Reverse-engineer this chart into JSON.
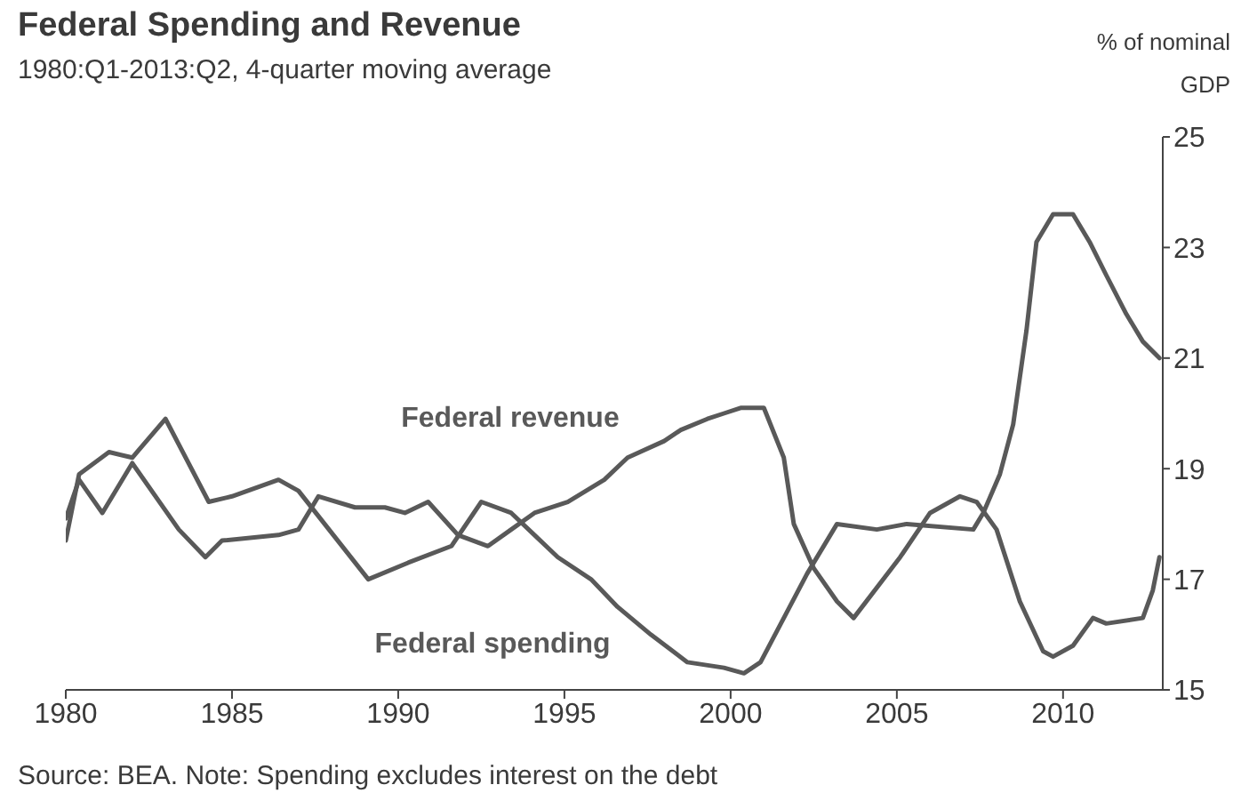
{
  "chart_data": {
    "type": "line",
    "title": "Federal Spending and Revenue",
    "subtitle": "1980:Q1-2013:Q2, 4-quarter moving average",
    "ylabel": "% of nominal GDP",
    "annotations": [
      "Source: BEA. Note: Spending excludes interest on the debt"
    ],
    "xlim": [
      1980,
      2013
    ],
    "xticks": [
      1980,
      1985,
      1990,
      1995,
      2000,
      2005,
      2010
    ],
    "ylim": [
      15,
      25
    ],
    "yticks": [
      15,
      17,
      19,
      21,
      23,
      25
    ],
    "series": [
      {
        "name": "Federal spending",
        "color": "#595959",
        "x": [
          1980,
          1980.4,
          1981.3,
          1982,
          1983,
          1984.3,
          1985,
          1986.4,
          1987,
          1989.1,
          1990.3,
          1991.6,
          1992.5,
          1993.4,
          1994.1,
          1994.8,
          1995.8,
          1996.6,
          1997.6,
          1998.7,
          1999.8,
          2000.4,
          2000.9,
          2001.6,
          2002.3,
          2003.2,
          2004.4,
          2005.3,
          2007.3,
          2007.6,
          2008.1,
          2008.5,
          2008.9,
          2009.2,
          2009.7,
          2010.3,
          2010.8,
          2011.3,
          2011.9,
          2012.4,
          2012.9
        ],
        "values": [
          17.7,
          18.9,
          19.3,
          19.2,
          19.9,
          18.4,
          18.5,
          18.8,
          18.6,
          17.0,
          17.3,
          17.6,
          18.4,
          18.2,
          17.8,
          17.4,
          17.0,
          16.5,
          16.0,
          15.5,
          15.4,
          15.3,
          15.5,
          16.3,
          17.1,
          18.0,
          17.9,
          18.0,
          17.9,
          18.2,
          18.9,
          19.8,
          21.5,
          23.1,
          23.6,
          23.6,
          23.1,
          22.5,
          21.8,
          21.3,
          21.0
        ]
      },
      {
        "name": "Federal revenue",
        "color": "#595959",
        "x": [
          1980,
          1980.4,
          1981.1,
          1982,
          1983.4,
          1984.2,
          1984.7,
          1986.4,
          1987,
          1987.6,
          1988.7,
          1989.6,
          1990.2,
          1990.9,
          1991.8,
          1992.7,
          1993.4,
          1994.1,
          1995.1,
          1996.2,
          1996.9,
          1998,
          1998.5,
          1999.3,
          1999.8,
          2000.3,
          2001,
          2001.6,
          2001.9,
          2002.5,
          2003.2,
          2003.7,
          2005.1,
          2006,
          2006.9,
          2007.4,
          2008,
          2008.7,
          2009.4,
          2009.7,
          2010.3,
          2010.9,
          2011.3,
          2012.4,
          2012.7,
          2012.9
        ],
        "values": [
          18.1,
          18.8,
          18.2,
          19.1,
          17.9,
          17.4,
          17.7,
          17.8,
          17.9,
          18.5,
          18.3,
          18.3,
          18.2,
          18.4,
          17.8,
          17.6,
          17.9,
          18.2,
          18.4,
          18.8,
          19.2,
          19.5,
          19.7,
          19.9,
          20.0,
          20.1,
          20.1,
          19.2,
          18.0,
          17.2,
          16.6,
          16.3,
          17.4,
          18.2,
          18.5,
          18.4,
          17.9,
          16.6,
          15.7,
          15.6,
          15.8,
          16.3,
          16.2,
          16.3,
          16.8,
          17.4
        ]
      }
    ]
  }
}
